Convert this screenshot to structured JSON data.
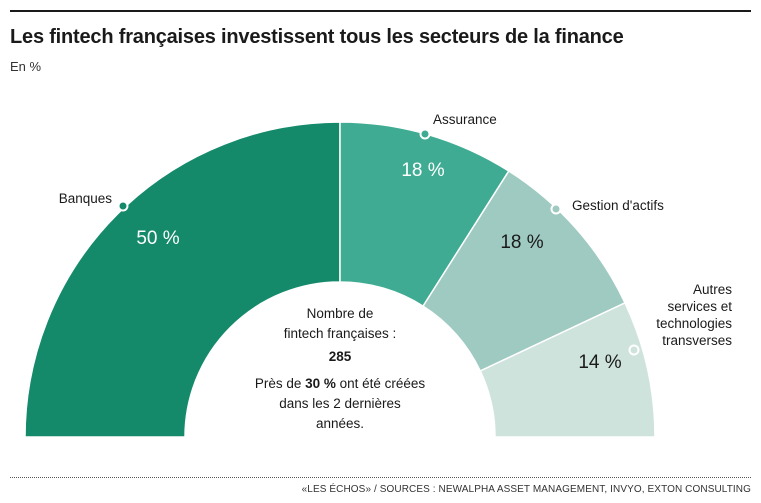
{
  "header": {
    "title": "Les fintech françaises investissent tous les secteurs de la finance",
    "unit": "En %"
  },
  "chart_data": {
    "type": "pie",
    "variant": "semi-donut",
    "unit": "%",
    "slices": [
      {
        "name": "Banques",
        "value": 50,
        "label": "50 %",
        "color": "#148a6b"
      },
      {
        "name": "Assurance",
        "value": 18,
        "label": "18 %",
        "color": "#3fab92"
      },
      {
        "name": "Gestion d'actifs",
        "value": 18,
        "label": "18 %",
        "color": "#9fcac1"
      },
      {
        "name": "Autres services et technologies transverses",
        "value": 14,
        "label": "14 %",
        "color": "#cfe3dd"
      }
    ],
    "center_text": {
      "line1": "Nombre de",
      "line2": "fintech françaises :",
      "count": "285",
      "note_pre": "Près de ",
      "note_bold": "30 %",
      "note_post": " ont été créées",
      "note_line2": "dans les 2 dernières",
      "note_line3": "années."
    }
  },
  "footer": {
    "source": "«LES ÉCHOS» / SOURCES : NEWALPHA ASSET MANAGEMENT, INVYO, EXTON CONSULTING"
  }
}
